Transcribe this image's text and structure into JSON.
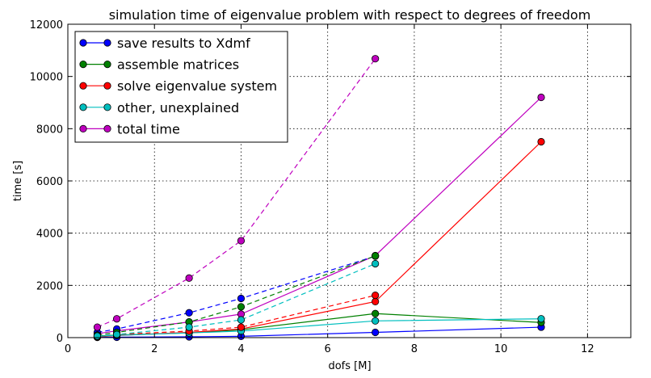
{
  "chart_data": {
    "type": "line",
    "title": "simulation time of eigenvalue problem with respect to degrees of freedom",
    "xlabel": "dofs [M]",
    "ylabel": "time [s]",
    "xlim": [
      0,
      13
    ],
    "ylim": [
      0,
      12000
    ],
    "xticks": [
      "0",
      "2",
      "4",
      "6",
      "8",
      "10",
      "12"
    ],
    "yticks": [
      "0",
      "2000",
      "4000",
      "6000",
      "8000",
      "10000",
      "12000"
    ],
    "grid": true,
    "legend_position": "top-left",
    "series": [
      {
        "name": "save results to Xdmf",
        "color": "#0000ff",
        "style": "solid",
        "x": [
          0.68,
          1.13,
          2.8,
          4.0,
          7.1,
          10.93
        ],
        "y": [
          10,
          15,
          30,
          50,
          200,
          400
        ]
      },
      {
        "name": "assemble matrices",
        "color": "#008000",
        "style": "solid",
        "x": [
          0.68,
          1.13,
          2.8,
          4.0,
          7.1,
          10.93
        ],
        "y": [
          60,
          100,
          180,
          300,
          920,
          580
        ]
      },
      {
        "name": "solve eigenvalue system",
        "color": "#ff0000",
        "style": "solid",
        "x": [
          0.68,
          1.13,
          2.8,
          4.0,
          7.1,
          10.93
        ],
        "y": [
          30,
          80,
          200,
          330,
          1380,
          7500
        ]
      },
      {
        "name": "other, unexplained",
        "color": "#00bfbf",
        "style": "solid",
        "x": [
          0.68,
          1.13,
          2.8,
          4.0,
          7.1,
          10.93
        ],
        "y": [
          50,
          90,
          180,
          250,
          640,
          720
        ]
      },
      {
        "name": "total time",
        "color": "#bf00bf",
        "style": "solid",
        "x": [
          0.68,
          1.13,
          2.8,
          4.0,
          7.1,
          10.93
        ],
        "y": [
          150,
          260,
          600,
          900,
          3140,
          9200
        ]
      },
      {
        "color": "#0000ff",
        "style": "dashed",
        "x": [
          0.68,
          1.13,
          2.8,
          4.0,
          7.1
        ],
        "y": [
          200,
          330,
          950,
          1500,
          3120
        ]
      },
      {
        "color": "#008000",
        "style": "dashed",
        "x": [
          0.68,
          1.13,
          2.8,
          4.0,
          7.1
        ],
        "y": [
          100,
          200,
          600,
          1180,
          3130
        ]
      },
      {
        "color": "#ff0000",
        "style": "dashed",
        "x": [
          0.68,
          1.13,
          2.8,
          4.0,
          7.1
        ],
        "y": [
          70,
          120,
          250,
          400,
          1620
        ]
      },
      {
        "color": "#00bfbf",
        "style": "dashed",
        "x": [
          0.68,
          1.13,
          2.8,
          4.0,
          7.1
        ],
        "y": [
          60,
          120,
          400,
          680,
          2830
        ]
      },
      {
        "color": "#bf00bf",
        "style": "dashed",
        "x": [
          0.68,
          1.13,
          2.8,
          4.0,
          7.1
        ],
        "y": [
          400,
          720,
          2280,
          3710,
          10680
        ]
      }
    ]
  }
}
